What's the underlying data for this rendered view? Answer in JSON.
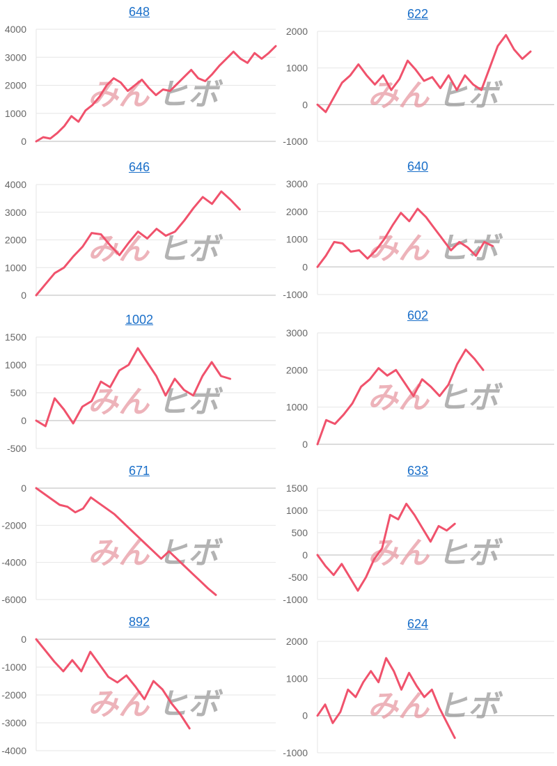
{
  "watermark": {
    "part1": "みん",
    "part2": "ヒボ"
  },
  "chart_data": [
    {
      "type": "line",
      "title": "648",
      "ylim": [
        0,
        4000
      ],
      "ticks": [
        0,
        1000,
        2000,
        3000,
        4000
      ],
      "grid": true,
      "series": [
        {
          "color": "#f0526c",
          "values": [
            0,
            150,
            100,
            300,
            550,
            900,
            700,
            1100,
            1300,
            1600,
            2000,
            2250,
            2100,
            1800,
            2000,
            2200,
            1900,
            1650,
            1850,
            1800,
            2050,
            2300,
            2550,
            2250,
            2150,
            2400,
            2700,
            2950,
            3200,
            2950,
            2800,
            3150,
            2950,
            3150,
            3400
          ]
        }
      ]
    },
    {
      "type": "line",
      "title": "622",
      "ylim": [
        -1000,
        2000
      ],
      "ticks": [
        -1000,
        0,
        1000,
        2000
      ],
      "grid": true,
      "series": [
        {
          "color": "#f0526c",
          "values": [
            0,
            -200,
            200,
            600,
            800,
            1100,
            800,
            550,
            800,
            400,
            700,
            1200,
            950,
            650,
            750,
            450,
            800,
            400,
            800,
            550,
            400,
            1000,
            1600,
            1900,
            1500,
            1250,
            1450
          ]
        }
      ]
    },
    {
      "type": "line",
      "title": "646",
      "ylim": [
        0,
        4000
      ],
      "ticks": [
        0,
        1000,
        2000,
        3000,
        4000
      ],
      "grid": true,
      "series": [
        {
          "color": "#f0526c",
          "values": [
            0,
            400,
            800,
            1000,
            1400,
            1750,
            2250,
            2200,
            1800,
            1450,
            1900,
            2300,
            2050,
            2400,
            2150,
            2300,
            2700,
            3150,
            3550,
            3300,
            3750,
            3450,
            3100
          ]
        }
      ]
    },
    {
      "type": "line",
      "title": "640",
      "ylim": [
        -1000,
        3000
      ],
      "ticks": [
        -1000,
        0,
        1000,
        2000,
        3000
      ],
      "grid": true,
      "series": [
        {
          "color": "#f0526c",
          "values": [
            0,
            400,
            900,
            850,
            550,
            600,
            300,
            600,
            1000,
            1500,
            1950,
            1650,
            2100,
            1800,
            1400,
            1000,
            600,
            900,
            700,
            400,
            900,
            750
          ]
        }
      ]
    },
    {
      "type": "line",
      "title": "1002",
      "ylim": [
        -500,
        1500
      ],
      "ticks": [
        -500,
        0,
        500,
        1000,
        1500
      ],
      "grid": true,
      "series": [
        {
          "color": "#f0526c",
          "values": [
            0,
            -100,
            400,
            200,
            -50,
            250,
            350,
            700,
            600,
            900,
            1000,
            1300,
            1050,
            800,
            450,
            750,
            550,
            450,
            800,
            1050,
            800,
            750
          ]
        }
      ]
    },
    {
      "type": "line",
      "title": "602",
      "ylim": [
        0,
        3000
      ],
      "ticks": [
        0,
        1000,
        2000,
        3000
      ],
      "grid": true,
      "series": [
        {
          "color": "#f0526c",
          "values": [
            0,
            650,
            550,
            800,
            1100,
            1550,
            1750,
            2050,
            1850,
            2000,
            1650,
            1300,
            1750,
            1550,
            1300,
            1600,
            2150,
            2550,
            2300,
            2000
          ]
        }
      ]
    },
    {
      "type": "line",
      "title": "671",
      "ylim": [
        -6000,
        0
      ],
      "ticks": [
        -6000,
        -4000,
        -2000,
        0
      ],
      "grid": true,
      "series": [
        {
          "color": "#f0526c",
          "values": [
            0,
            -300,
            -600,
            -900,
            -1000,
            -1300,
            -1100,
            -500,
            -800,
            -1100,
            -1400,
            -1800,
            -2200,
            -2600,
            -3000,
            -3400,
            -3800,
            -3400,
            -3800,
            -4200,
            -4600,
            -5000,
            -5400,
            -5750
          ]
        }
      ]
    },
    {
      "type": "line",
      "title": "633",
      "ylim": [
        -1000,
        1500
      ],
      "ticks": [
        -1000,
        -500,
        0,
        500,
        1000,
        1500
      ],
      "grid": true,
      "series": [
        {
          "color": "#f0526c",
          "values": [
            0,
            -250,
            -450,
            -200,
            -500,
            -800,
            -500,
            -100,
            150,
            900,
            800,
            1150,
            900,
            600,
            300,
            650,
            550,
            700
          ]
        }
      ]
    },
    {
      "type": "line",
      "title": "892",
      "ylim": [
        -4000,
        0
      ],
      "ticks": [
        -4000,
        -3000,
        -2000,
        -1000,
        0
      ],
      "grid": true,
      "series": [
        {
          "color": "#f0526c",
          "values": [
            0,
            -400,
            -800,
            -1150,
            -750,
            -1150,
            -450,
            -900,
            -1350,
            -1550,
            -1300,
            -1700,
            -2150,
            -1500,
            -1800,
            -2300,
            -2700,
            -3200
          ]
        }
      ]
    },
    {
      "type": "line",
      "title": "624",
      "ylim": [
        -1000,
        2000
      ],
      "ticks": [
        -1000,
        0,
        1000,
        2000
      ],
      "grid": true,
      "series": [
        {
          "color": "#f0526c",
          "values": [
            0,
            300,
            -200,
            100,
            700,
            500,
            900,
            1200,
            900,
            1550,
            1200,
            700,
            1150,
            800,
            500,
            700,
            200,
            -200,
            -600
          ]
        }
      ]
    }
  ]
}
